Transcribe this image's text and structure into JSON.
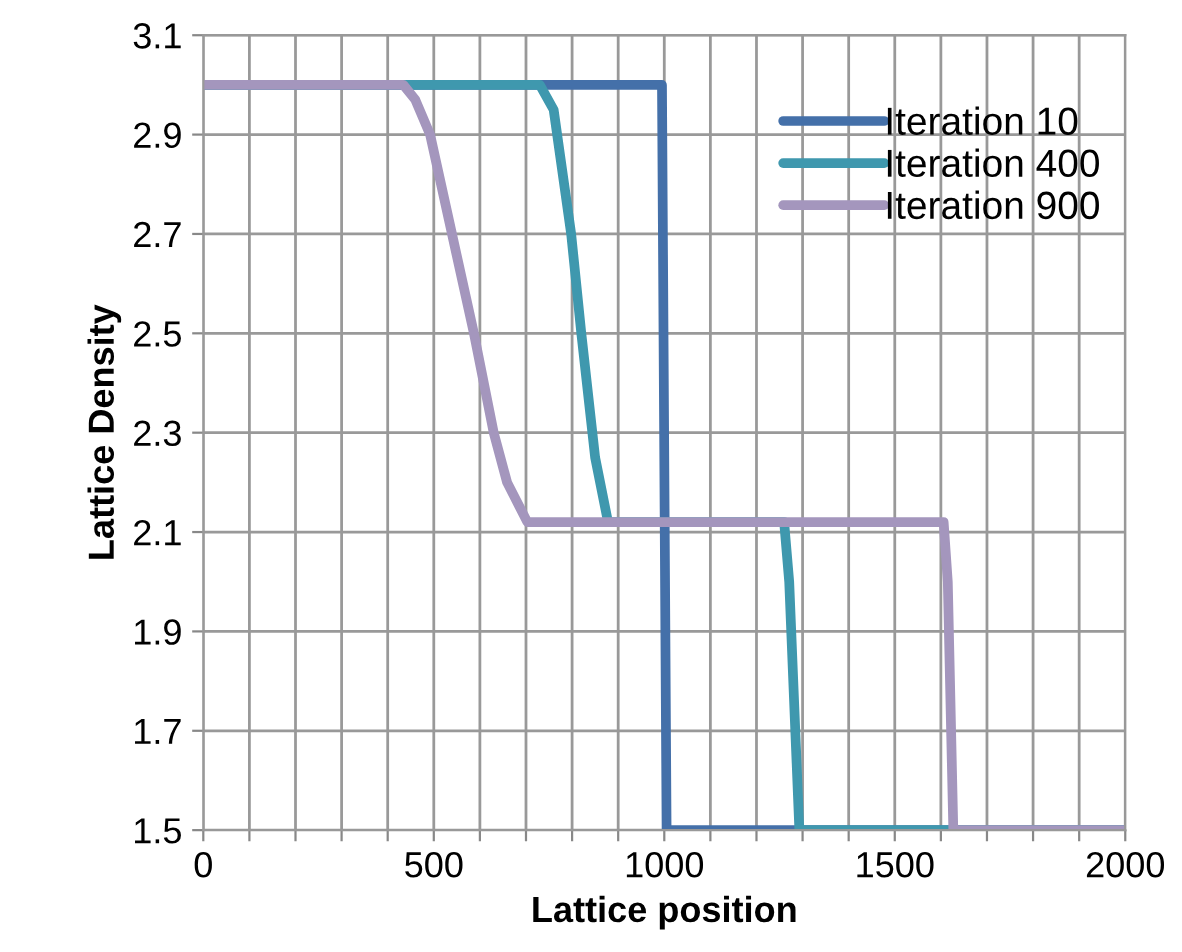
{
  "chart_data": {
    "type": "line",
    "xlabel": "Lattice position",
    "ylabel": "Lattice Density",
    "xlim": [
      0,
      2000
    ],
    "ylim": [
      1.5,
      3.1
    ],
    "xticks": [
      0,
      {
        "value": 100,
        "label": null
      },
      {
        "value": 200,
        "label": null
      },
      {
        "value": 300,
        "label": null
      },
      {
        "value": 400,
        "label": null
      },
      500,
      {
        "value": 600,
        "label": null
      },
      {
        "value": 700,
        "label": null
      },
      {
        "value": 800,
        "label": null
      },
      {
        "value": 900,
        "label": null
      },
      1000,
      {
        "value": 1100,
        "label": null
      },
      {
        "value": 1200,
        "label": null
      },
      {
        "value": 1300,
        "label": null
      },
      {
        "value": 1400,
        "label": null
      },
      1500,
      {
        "value": 1600,
        "label": null
      },
      {
        "value": 1700,
        "label": null
      },
      {
        "value": 1800,
        "label": null
      },
      {
        "value": 1900,
        "label": null
      },
      2000
    ],
    "yticks": [
      1.5,
      1.7,
      1.9,
      2.1,
      2.3,
      2.5,
      2.7,
      2.9,
      3.1
    ],
    "grid": true,
    "legend": "top right",
    "line_style": "solid",
    "marker": "none",
    "series": [
      {
        "name": "Iteration 10",
        "color": "#4470a9",
        "x": [
          0,
          995,
          1005,
          2000
        ],
        "values": [
          3.0,
          3.0,
          1.5,
          1.5
        ]
      },
      {
        "name": "Iteration 400",
        "color": "#3f98ae",
        "x": [
          0,
          730,
          760,
          798,
          820,
          850,
          878,
          1260,
          1271,
          1293,
          2000
        ],
        "values": [
          3.0,
          3.0,
          2.95,
          2.7,
          2.5,
          2.25,
          2.12,
          2.12,
          2.0,
          1.5,
          1.5
        ]
      },
      {
        "name": "Iteration 900",
        "color": "#a496bd",
        "x": [
          0,
          434,
          460,
          492,
          587,
          630,
          659,
          703,
          1606,
          1615,
          1627,
          2000
        ],
        "values": [
          3.0,
          3.0,
          2.97,
          2.9,
          2.5,
          2.3,
          2.2,
          2.12,
          2.12,
          2.0,
          1.5,
          1.5
        ]
      }
    ]
  }
}
